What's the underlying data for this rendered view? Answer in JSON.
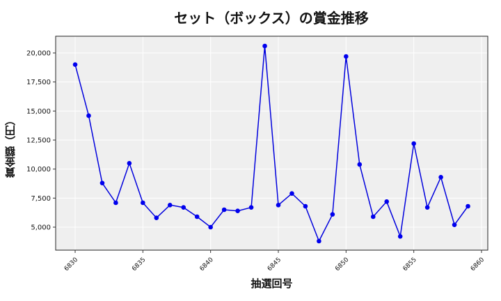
{
  "chart": {
    "title": "セット（ボックス）の賞金推移",
    "xlabel": "抽選回号",
    "ylabel": "賞金額（円）",
    "line_color": "#0000dd",
    "marker_color": "#0000ee",
    "plot_bg": "#efefef"
  },
  "chart_data": {
    "type": "line",
    "title": "セット（ボックス）の賞金推移",
    "xlabel": "抽選回号",
    "ylabel": "賞金額（円）",
    "x": [
      6830,
      6831,
      6832,
      6833,
      6834,
      6835,
      6836,
      6837,
      6838,
      6839,
      6840,
      6841,
      6842,
      6843,
      6844,
      6845,
      6846,
      6847,
      6848,
      6849,
      6850,
      6851,
      6852,
      6853,
      6854,
      6855,
      6856,
      6857,
      6858,
      6859
    ],
    "series": [
      {
        "name": "セット（ボックス）",
        "values": [
          19000,
          14600,
          8800,
          7100,
          10500,
          7100,
          5800,
          6900,
          6700,
          5900,
          5000,
          6500,
          6400,
          6700,
          20600,
          6900,
          7900,
          6800,
          3800,
          6100,
          19700,
          10400,
          5900,
          7200,
          4200,
          12200,
          6700,
          9300,
          5200,
          6800
        ]
      }
    ],
    "x_ticks": [
      6830,
      6835,
      6840,
      6845,
      6850,
      6855,
      6860
    ],
    "y_ticks": [
      5000,
      7500,
      10000,
      12500,
      15000,
      17500,
      20000
    ],
    "y_tick_labels": [
      "5,000",
      "7,500",
      "10,000",
      "12,500",
      "15,000",
      "17,500",
      "20,000"
    ],
    "xlim": [
      6828.6,
      6861
    ],
    "ylim": [
      2950,
      21450
    ],
    "grid": true,
    "legend": false
  }
}
